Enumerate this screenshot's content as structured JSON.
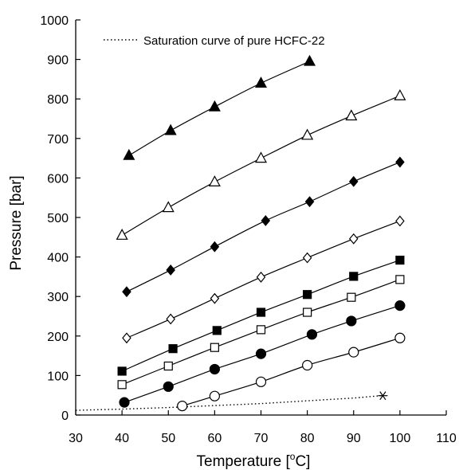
{
  "chart_data": {
    "type": "scatter",
    "xlabel": "Temperature [",
    "xlabel_super": "o",
    "xlabel_suffix": "C]",
    "ylabel": "Pressure [bar]",
    "xlim": [
      30,
      110
    ],
    "ylim": [
      0,
      1000
    ],
    "xticks": [
      30,
      40,
      50,
      60,
      70,
      80,
      90,
      100,
      110
    ],
    "yticks": [
      0,
      100,
      200,
      300,
      400,
      500,
      600,
      700,
      800,
      900,
      1000
    ],
    "grid": false,
    "legend_position": "top-left",
    "legend": [
      {
        "label": "Saturation curve of pure HCFC-22",
        "style": "dotted"
      }
    ],
    "saturation_curve": {
      "name": "Saturation curve of pure HCFC-22",
      "x": [
        30,
        40,
        50,
        60,
        70,
        80,
        90,
        96
      ],
      "y": [
        12,
        15,
        19,
        24,
        29,
        36,
        43,
        49
      ],
      "end_marker": {
        "x": 96.3,
        "y": 49,
        "symbol": "asterisk"
      }
    },
    "series": [
      {
        "marker": "filled-triangle",
        "x": [
          41.5,
          50.5,
          60,
          70,
          80.5
        ],
        "y": [
          657,
          720,
          780,
          840,
          895
        ]
      },
      {
        "marker": "open-triangle",
        "x": [
          40,
          50,
          60,
          70,
          80,
          89.5,
          100
        ],
        "y": [
          455,
          525,
          590,
          650,
          708,
          757,
          808
        ]
      },
      {
        "marker": "filled-diamond",
        "x": [
          41,
          50.5,
          60,
          71,
          80.5,
          90,
          100
        ],
        "y": [
          312,
          367,
          426,
          492,
          540,
          591,
          640
        ]
      },
      {
        "marker": "open-diamond",
        "x": [
          41,
          50.5,
          60,
          70,
          80,
          90,
          100
        ],
        "y": [
          195,
          243,
          295,
          349,
          398,
          446,
          491
        ]
      },
      {
        "marker": "filled-square",
        "x": [
          40,
          51,
          60.5,
          70,
          80,
          90,
          100
        ],
        "y": [
          111,
          168,
          214,
          260,
          305,
          351,
          392
        ]
      },
      {
        "marker": "open-square",
        "x": [
          40,
          50,
          60,
          70,
          80,
          89.5,
          100
        ],
        "y": [
          77,
          124,
          171,
          216,
          260,
          298,
          343
        ]
      },
      {
        "marker": "filled-circle",
        "x": [
          40.5,
          50,
          60,
          70,
          81,
          89.5,
          100
        ],
        "y": [
          32,
          72,
          116,
          155,
          204,
          238,
          277
        ]
      },
      {
        "marker": "open-circle",
        "x": [
          53,
          60,
          70,
          80,
          90,
          100
        ],
        "y": [
          23,
          48,
          84,
          126,
          159,
          195
        ]
      }
    ]
  }
}
